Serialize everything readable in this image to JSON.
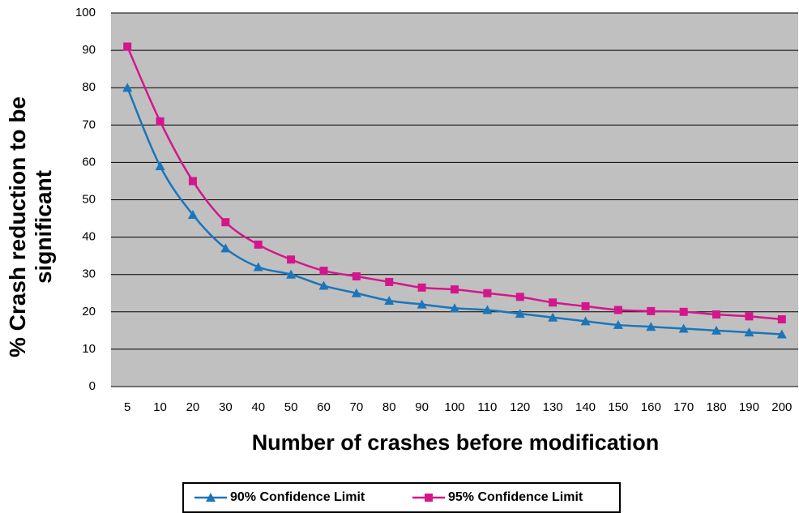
{
  "chart_data": {
    "type": "line",
    "xlabel": "Number of crashes before modification",
    "ylabel": "% Crash reduction to be significant",
    "categories": [
      5,
      10,
      20,
      30,
      40,
      50,
      60,
      70,
      80,
      90,
      100,
      110,
      120,
      130,
      140,
      150,
      160,
      170,
      180,
      190,
      200
    ],
    "series": [
      {
        "name": "90% Confidence Limit",
        "color": "#1b75bb",
        "marker": "triangle",
        "values": [
          80,
          59,
          46,
          37,
          32,
          30,
          27,
          25,
          23,
          22,
          21,
          20.5,
          19.5,
          18.5,
          17.5,
          16.5,
          16,
          15.5,
          15,
          14.5,
          14
        ]
      },
      {
        "name": "95% Confidence Limit",
        "color": "#d4168c",
        "marker": "square",
        "values": [
          91,
          71,
          55,
          44,
          38,
          34,
          31,
          29.5,
          28,
          26.5,
          26,
          25,
          24,
          22.5,
          21.5,
          20.5,
          20.2,
          20,
          19.3,
          18.8,
          18
        ]
      }
    ],
    "ylim": [
      0,
      100
    ],
    "yticks": [
      0,
      10,
      20,
      30,
      40,
      50,
      60,
      70,
      80,
      90,
      100
    ],
    "grid": true,
    "legend": "bottom"
  }
}
